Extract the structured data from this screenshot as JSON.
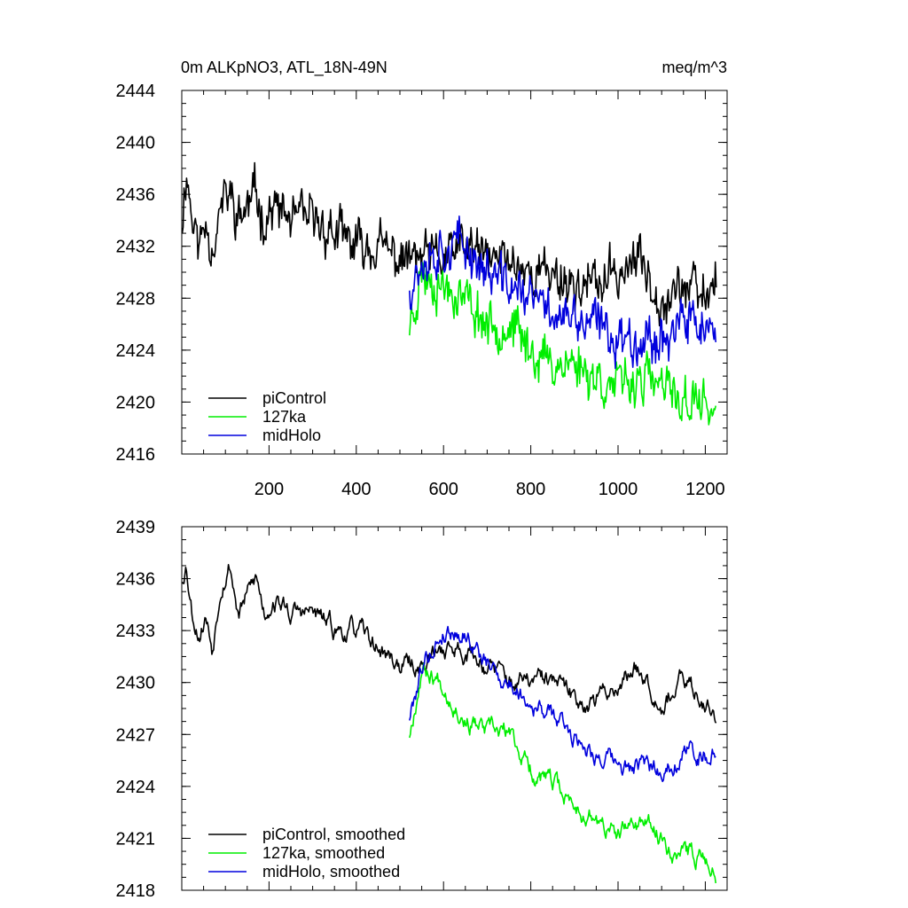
{
  "figure": {
    "title_left": "0m ALKpNO3, ATL_18N-49N",
    "title_right": "meq/m^3"
  },
  "colors": {
    "piControl": "#000000",
    "127ka": "#00ee00",
    "midHolo": "#0000dd"
  },
  "chart_data": [
    {
      "type": "line",
      "panel": "top",
      "xlim": [
        0,
        1250
      ],
      "ylim": [
        2416,
        2444
      ],
      "xticks": [
        200,
        400,
        600,
        800,
        1000,
        1200
      ],
      "yticks": [
        2416,
        2420,
        2424,
        2428,
        2432,
        2436,
        2440,
        2444
      ],
      "legend_position": "bottom-left",
      "series": [
        {
          "name": "piControl",
          "color": "#000000",
          "noise": 1.8,
          "seed": 11,
          "x": [
            1,
            10,
            25,
            40,
            55,
            70,
            90,
            110,
            130,
            150,
            170,
            190,
            210,
            250,
            300,
            350,
            400,
            450,
            500,
            550,
            600,
            650,
            700,
            750,
            800,
            850,
            900,
            950,
            1000,
            1050,
            1100,
            1150,
            1200,
            1225
          ],
          "y": [
            2434,
            2438,
            2434,
            2432,
            2434,
            2432,
            2435,
            2436,
            2434,
            2435,
            2436,
            2434,
            2435,
            2434,
            2434,
            2433,
            2432,
            2432,
            2431,
            2431,
            2431,
            2432,
            2431,
            2431,
            2430,
            2430,
            2429,
            2429,
            2430,
            2431,
            2428,
            2429,
            2428,
            2430
          ]
        },
        {
          "name": "127ka",
          "color": "#00ee00",
          "noise": 1.8,
          "seed": 23,
          "x": [
            522,
            550,
            600,
            650,
            700,
            750,
            800,
            850,
            900,
            950,
            1000,
            1050,
            1100,
            1150,
            1200,
            1225
          ],
          "y": [
            2426,
            2430,
            2429,
            2428,
            2426,
            2426,
            2424,
            2423,
            2423,
            2422,
            2421,
            2422,
            2421,
            2420,
            2420,
            2419
          ]
        },
        {
          "name": "midHolo",
          "color": "#0000dd",
          "noise": 1.8,
          "seed": 37,
          "x": [
            522,
            550,
            600,
            650,
            700,
            750,
            800,
            850,
            900,
            950,
            1000,
            1050,
            1100,
            1150,
            1200,
            1225
          ],
          "y": [
            2429,
            2431,
            2432,
            2432,
            2430,
            2429,
            2428,
            2427,
            2426,
            2426,
            2425,
            2425,
            2425,
            2426,
            2426,
            2424
          ]
        }
      ]
    },
    {
      "type": "line",
      "panel": "bottom",
      "xlim": [
        0,
        1250
      ],
      "ylim": [
        2418,
        2439
      ],
      "xticks": [
        200,
        400,
        600,
        800,
        1000,
        1200
      ],
      "yticks": [
        2418,
        2421,
        2424,
        2427,
        2430,
        2433,
        2436,
        2439
      ],
      "legend_position": "bottom-left",
      "series": [
        {
          "name": "piControl, smoothed",
          "color": "#000000",
          "noise": 0.9,
          "seed": 53,
          "x": [
            1,
            10,
            25,
            40,
            55,
            70,
            90,
            110,
            130,
            150,
            170,
            190,
            210,
            250,
            300,
            350,
            400,
            450,
            500,
            550,
            600,
            650,
            700,
            750,
            800,
            850,
            900,
            950,
            1000,
            1050,
            1100,
            1150,
            1200,
            1225
          ],
          "y": [
            2436,
            2437,
            2434,
            2433,
            2434,
            2432,
            2436,
            2437,
            2434,
            2435,
            2436,
            2434,
            2435,
            2434,
            2434,
            2433,
            2433,
            2432,
            2431,
            2431,
            2432,
            2432,
            2431,
            2430,
            2430,
            2430,
            2429,
            2429,
            2430,
            2431,
            2429,
            2430,
            2429,
            2428
          ]
        },
        {
          "name": "127ka, smoothed",
          "color": "#00ee00",
          "noise": 0.9,
          "seed": 67,
          "x": [
            522,
            550,
            600,
            650,
            700,
            750,
            800,
            850,
            900,
            950,
            1000,
            1050,
            1100,
            1150,
            1200,
            1225
          ],
          "y": [
            2427,
            2431,
            2430,
            2428,
            2427,
            2427,
            2425,
            2424,
            2423,
            2422,
            2421,
            2422,
            2421,
            2420,
            2420,
            2419
          ]
        },
        {
          "name": "midHolo, smoothed",
          "color": "#0000dd",
          "noise": 0.9,
          "seed": 79,
          "x": [
            522,
            550,
            600,
            650,
            700,
            750,
            800,
            850,
            900,
            950,
            1000,
            1050,
            1100,
            1150,
            1200,
            1225
          ],
          "y": [
            2428,
            2431,
            2433,
            2433,
            2431,
            2430,
            2429,
            2428,
            2427,
            2426,
            2425,
            2425,
            2425,
            2426,
            2426,
            2426
          ]
        }
      ]
    }
  ]
}
